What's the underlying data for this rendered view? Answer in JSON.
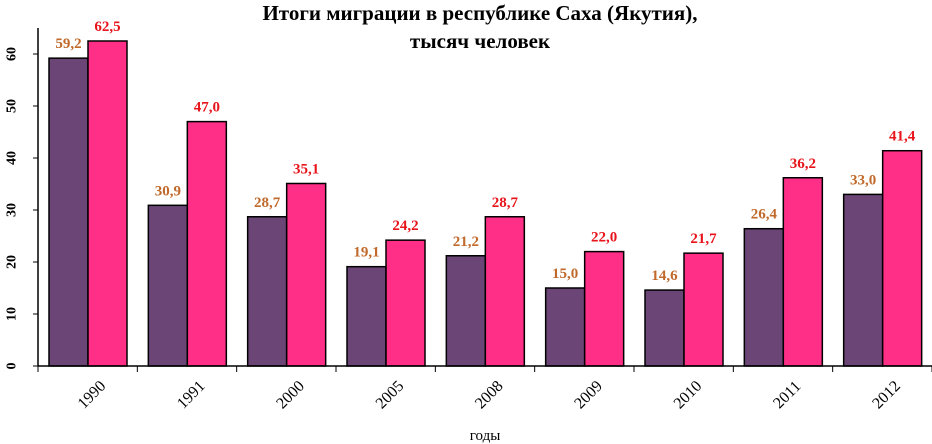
{
  "chart_data": {
    "type": "bar",
    "title": "Итоги миграции в республике Саха (Якутия),",
    "subtitle": "тысяч человек",
    "xlabel": "годы",
    "ylabel": "",
    "ylim": [
      0,
      65
    ],
    "yticks": [
      "0",
      "10",
      "20",
      "30",
      "40",
      "50",
      "60"
    ],
    "grid": false,
    "legend": "none",
    "categories": [
      "1990",
      "1991",
      "2000",
      "2005",
      "2008",
      "2009",
      "2010",
      "2011",
      "2012"
    ],
    "series": [
      {
        "color": "#6b4576",
        "label_color": "#c0692a",
        "values": [
          59.2,
          30.9,
          28.7,
          19.1,
          21.2,
          15.0,
          14.6,
          26.4,
          33.0
        ],
        "labels": [
          "59,2",
          "30,9",
          "28,7",
          "19,1",
          "21,2",
          "15,0",
          "14,6",
          "26,4",
          "33,0"
        ]
      },
      {
        "color": "#ff2e86",
        "label_color": "#e8141c",
        "values": [
          62.5,
          47.0,
          35.1,
          24.2,
          28.7,
          22.0,
          21.7,
          36.2,
          41.4
        ],
        "labels": [
          "62,5",
          "47,0",
          "35,1",
          "24,2",
          "28,7",
          "22,0",
          "21,7",
          "36,2",
          "41,4"
        ]
      }
    ]
  }
}
